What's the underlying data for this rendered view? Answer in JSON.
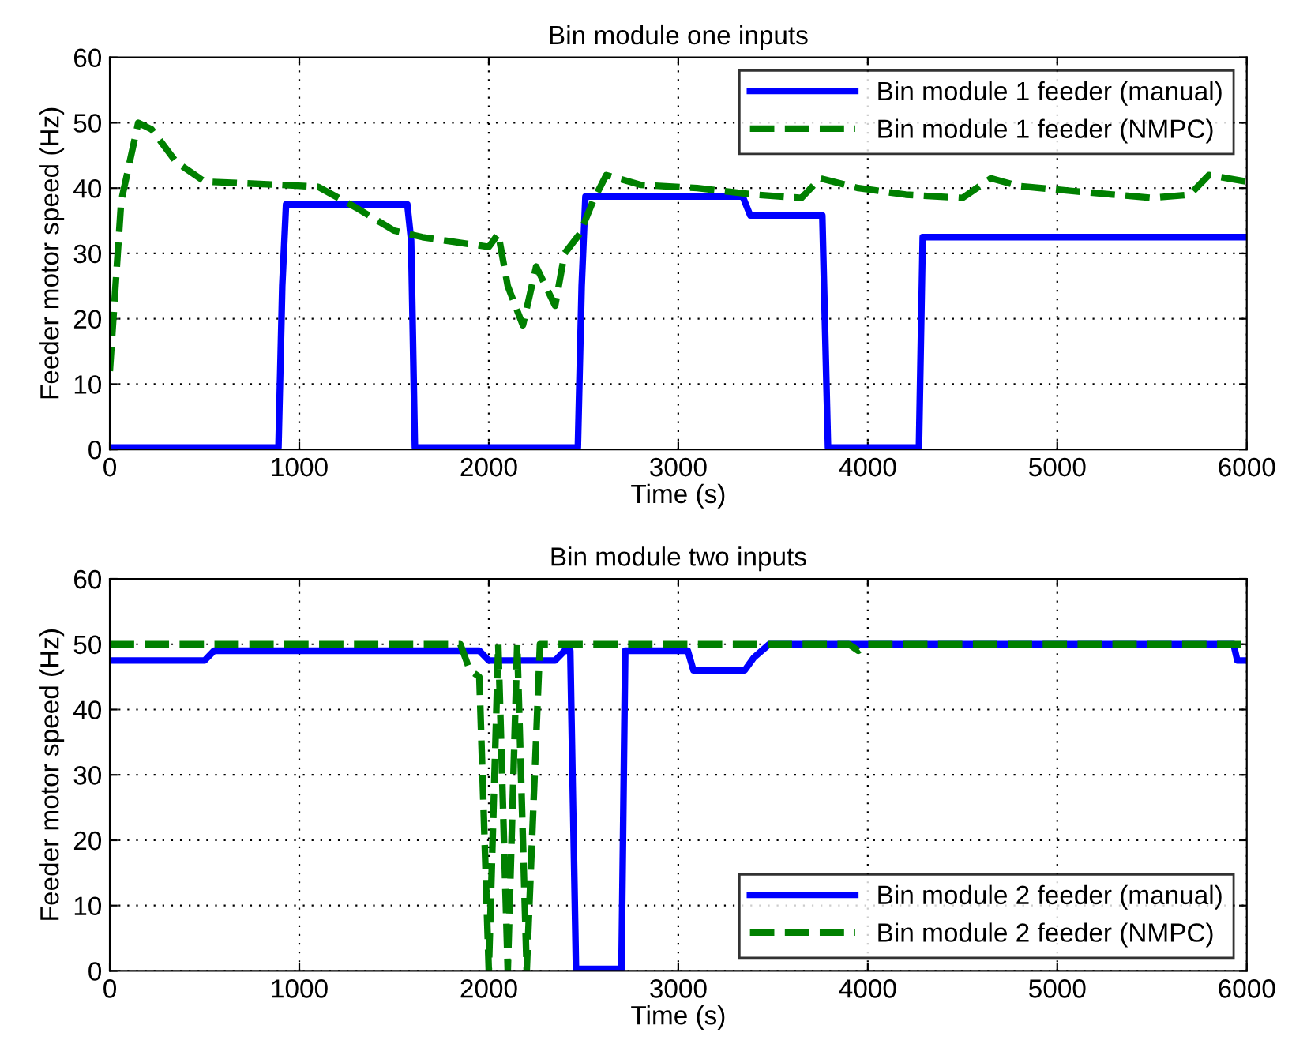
{
  "chart_data": [
    {
      "type": "line",
      "title": "Bin module one inputs",
      "xlabel": "Time (s)",
      "ylabel": "Feeder motor speed (Hz)",
      "xlim": [
        0,
        6000
      ],
      "ylim": [
        0,
        60
      ],
      "xticks": [
        0,
        1000,
        2000,
        3000,
        4000,
        5000,
        6000
      ],
      "yticks": [
        0,
        10,
        20,
        30,
        40,
        50,
        60
      ],
      "grid": true,
      "legend": "top right",
      "series": [
        {
          "name": "Bin module 1 feeder (manual)",
          "color": "#0000ff",
          "line_style": "solid",
          "x": [
            0,
            890,
            910,
            930,
            1570,
            1590,
            1610,
            2470,
            2490,
            2510,
            3340,
            3380,
            3760,
            3790,
            4270,
            4290,
            6000
          ],
          "values": [
            0.3,
            0.3,
            25,
            37.5,
            37.5,
            32,
            0.3,
            0.3,
            25,
            38.7,
            38.7,
            35.8,
            35.8,
            0.3,
            0.3,
            32.5,
            32.5
          ]
        },
        {
          "name": "Bin module 1 feeder (NMPC)",
          "color": "#008000",
          "line_style": "dashed",
          "x": [
            0,
            30,
            60,
            150,
            220,
            350,
            500,
            900,
            1100,
            1300,
            1500,
            1650,
            2000,
            2050,
            2100,
            2180,
            2250,
            2350,
            2400,
            2480,
            2550,
            2620,
            2800,
            3100,
            3400,
            3650,
            3750,
            3950,
            4200,
            4500,
            4650,
            4800,
            5100,
            5500,
            5700,
            5800,
            6000
          ],
          "values": [
            12,
            25,
            38,
            50,
            49,
            44,
            41,
            40.5,
            40.2,
            37,
            33.5,
            32.5,
            31,
            33,
            25,
            19,
            28,
            22,
            30,
            33,
            38,
            42,
            40.5,
            40,
            39,
            38.5,
            41.5,
            40,
            39,
            38.5,
            41.5,
            40.3,
            39.5,
            38.5,
            39,
            42,
            41
          ]
        }
      ]
    },
    {
      "type": "line",
      "title": "Bin module two inputs",
      "xlabel": "Time (s)",
      "ylabel": "Feeder motor speed (Hz)",
      "xlim": [
        0,
        6000
      ],
      "ylim": [
        0,
        60
      ],
      "xticks": [
        0,
        1000,
        2000,
        3000,
        4000,
        5000,
        6000
      ],
      "yticks": [
        0,
        10,
        20,
        30,
        40,
        50,
        60
      ],
      "grid": true,
      "legend": "bottom right",
      "series": [
        {
          "name": "Bin module 2 feeder (manual)",
          "color": "#0000ff",
          "line_style": "solid",
          "x": [
            0,
            500,
            550,
            1950,
            2000,
            2350,
            2400,
            2430,
            2460,
            2700,
            2720,
            3050,
            3080,
            3350,
            3400,
            3480,
            5930,
            5950,
            6000
          ],
          "values": [
            47.5,
            47.5,
            49,
            49,
            47.5,
            47.5,
            49,
            49,
            0.3,
            0.3,
            49,
            49,
            46,
            46,
            48,
            50,
            50,
            47.5,
            47.5
          ]
        },
        {
          "name": "Bin module 2 feeder (NMPC)",
          "color": "#008000",
          "line_style": "dashed",
          "x": [
            0,
            1850,
            1900,
            1950,
            2000,
            2050,
            2100,
            2150,
            2200,
            2270,
            3900,
            3950,
            4000,
            6000
          ],
          "values": [
            50,
            50,
            46,
            45,
            0,
            50,
            0,
            50,
            0,
            50,
            50,
            49,
            50,
            50
          ]
        }
      ]
    }
  ]
}
